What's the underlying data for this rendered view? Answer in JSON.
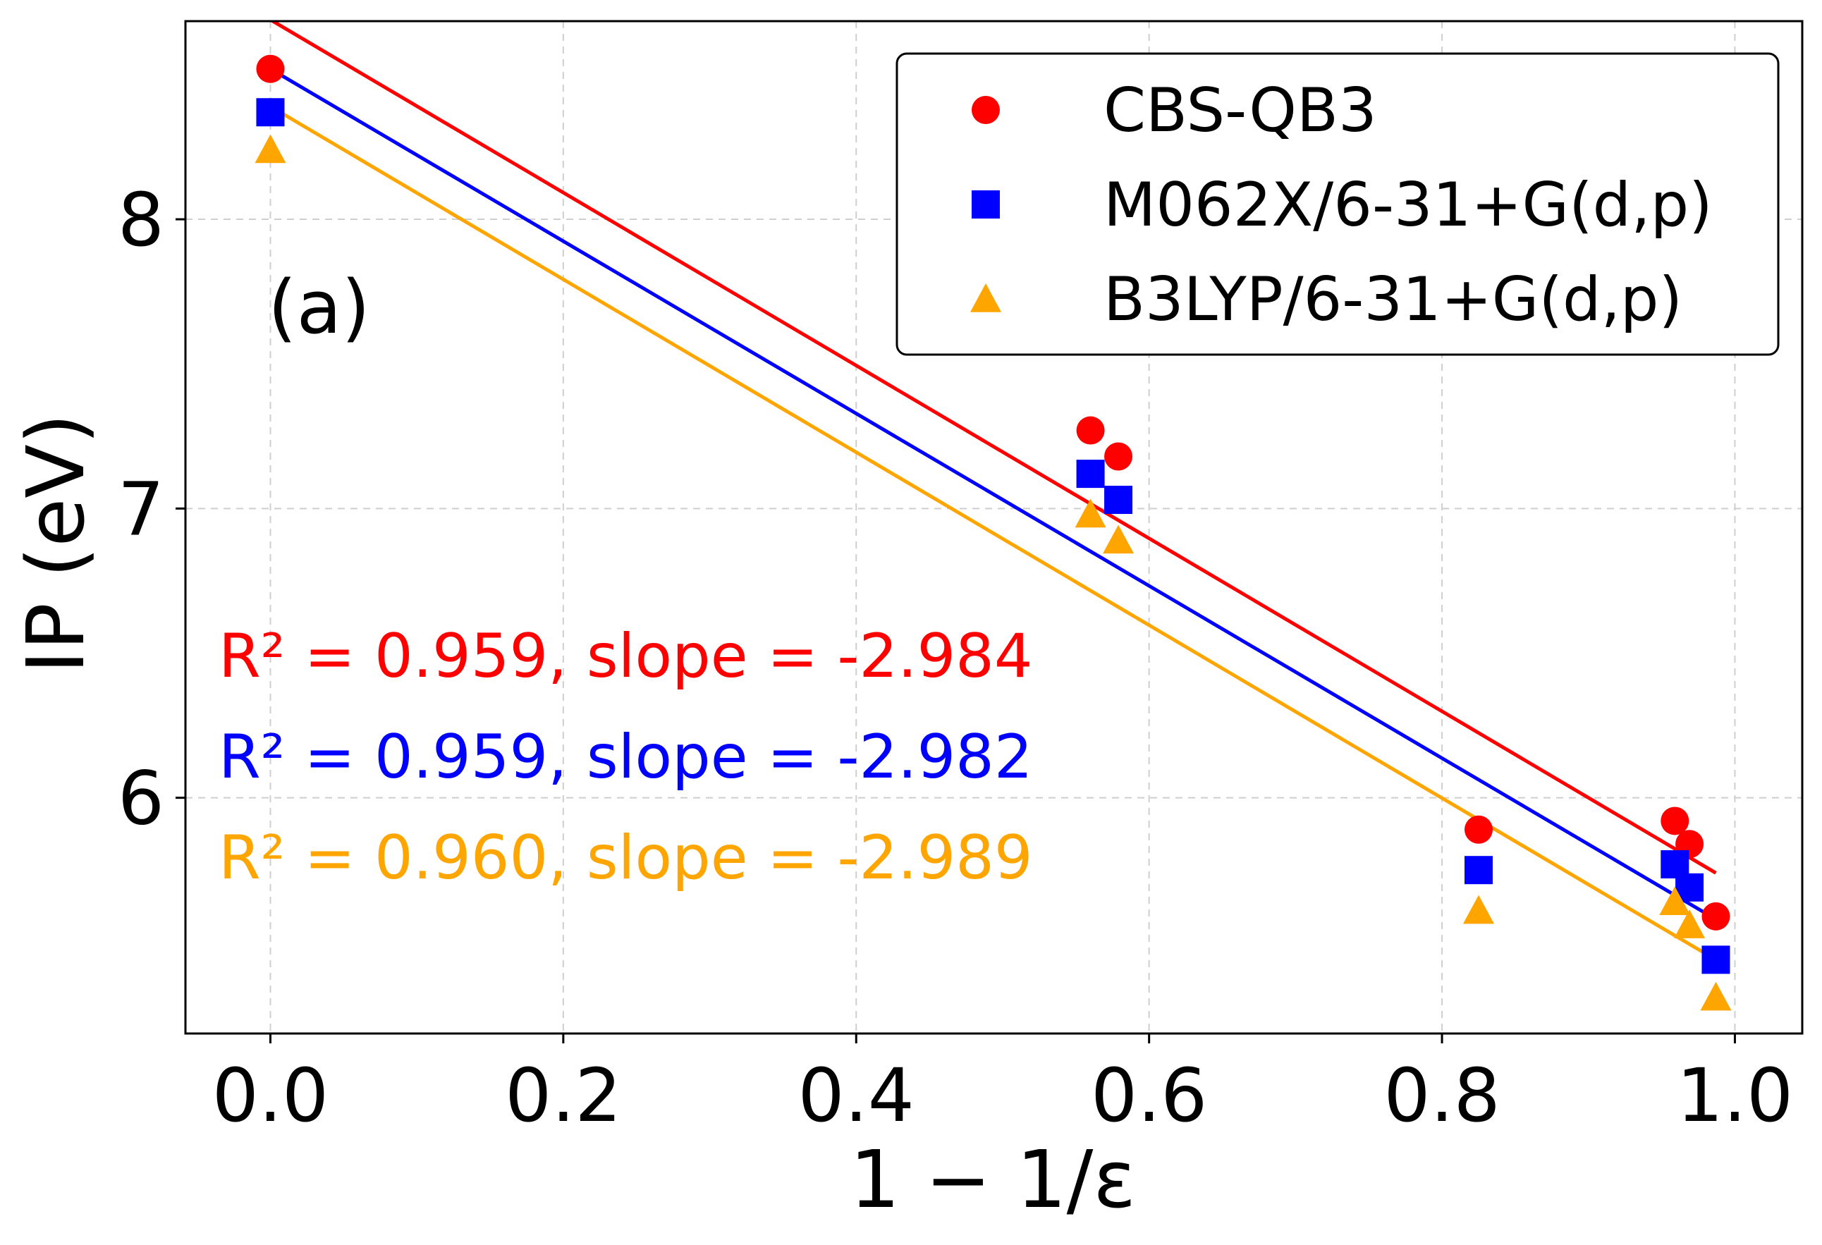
{
  "chart_data": {
    "type": "scatter",
    "xlabel": "1 − 1/ε",
    "ylabel": "IP (eV)",
    "panel_label": "(a)",
    "xlim": [
      -0.058,
      1.046
    ],
    "ylim": [
      5.185,
      8.685
    ],
    "xticks": [
      0.0,
      0.2,
      0.4,
      0.6,
      0.8,
      1.0
    ],
    "xtick_labels": [
      "0.0",
      "0.2",
      "0.4",
      "0.6",
      "0.8",
      "1.0"
    ],
    "yticks": [
      6,
      7,
      8
    ],
    "ytick_labels": [
      "6",
      "7",
      "8"
    ],
    "grid": true,
    "legend_position": "top-right",
    "series": [
      {
        "name": "CBS-QB3",
        "marker": "circle",
        "color": "#ff0000",
        "x": [
          0.0,
          0.56,
          0.579,
          0.825,
          0.959,
          0.969,
          0.987
        ],
        "y": [
          8.52,
          7.27,
          7.18,
          5.89,
          5.92,
          5.84,
          5.59
        ],
        "fit": {
          "x": [
            0.0,
            0.987
          ],
          "y": [
            8.69,
            5.74
          ]
        },
        "annotation": "R² = 0.959, slope = -2.984"
      },
      {
        "name": "M062X/6-31+G(d,p)",
        "marker": "square",
        "color": "#0000ff",
        "x": [
          0.0,
          0.56,
          0.579,
          0.825,
          0.959,
          0.969,
          0.987
        ],
        "y": [
          8.37,
          7.12,
          7.03,
          5.75,
          5.77,
          5.69,
          5.44
        ],
        "fit": {
          "x": [
            0.0,
            0.987
          ],
          "y": [
            8.52,
            5.58
          ]
        },
        "annotation": "R² = 0.959, slope = -2.982"
      },
      {
        "name": "B3LYP/6-31+G(d,p)",
        "marker": "triangle",
        "color": "#ffa500",
        "x": [
          0.0,
          0.56,
          0.579,
          0.825,
          0.959,
          0.969,
          0.987
        ],
        "y": [
          8.24,
          6.98,
          6.89,
          5.61,
          5.64,
          5.56,
          5.31
        ],
        "fit": {
          "x": [
            0.0,
            0.987
          ],
          "y": [
            8.39,
            5.44
          ]
        },
        "annotation": "R² = 0.960, slope = -2.989"
      }
    ]
  }
}
